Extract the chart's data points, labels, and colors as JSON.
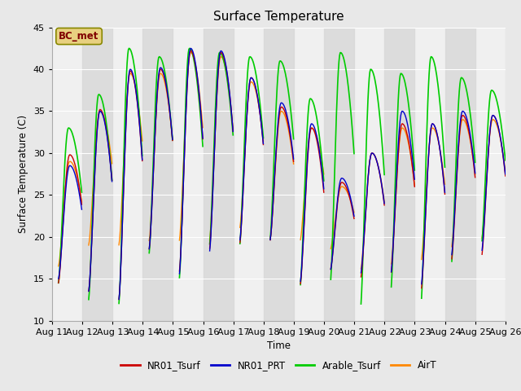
{
  "title": "Surface Temperature",
  "ylabel": "Surface Temperature (C)",
  "xlabel": "Time",
  "ylim": [
    10,
    45
  ],
  "xtick_labels": [
    "Aug 11",
    "Aug 12",
    "Aug 13",
    "Aug 14",
    "Aug 15",
    "Aug 16",
    "Aug 17",
    "Aug 18",
    "Aug 19",
    "Aug 20",
    "Aug 21",
    "Aug 22",
    "Aug 23",
    "Aug 24",
    "Aug 25",
    "Aug 26"
  ],
  "annotation": "BC_met",
  "annotation_color": "#800000",
  "annotation_bg": "#e8d080",
  "background_color": "#e8e8e8",
  "axes_bg": "#f0f0f0",
  "grid_color": "#ffffff",
  "series": {
    "NR01_Tsurf": {
      "color": "#cc0000",
      "linewidth": 1.0
    },
    "NR01_PRT": {
      "color": "#0000cc",
      "linewidth": 1.0
    },
    "Arable_Tsurf": {
      "color": "#00cc00",
      "linewidth": 1.2
    },
    "AirT": {
      "color": "#ff8800",
      "linewidth": 1.0
    }
  },
  "peaks": {
    "NR01_Tsurf": [
      29.8,
      35.2,
      39.8,
      40.0,
      42.2,
      42.0,
      39.0,
      35.5,
      33.0,
      26.5,
      30.0,
      33.5,
      33.5,
      34.5,
      34.5
    ],
    "NR01_PRT": [
      28.5,
      35.0,
      40.0,
      40.2,
      42.5,
      42.2,
      39.0,
      36.0,
      33.5,
      27.0,
      30.0,
      35.0,
      33.5,
      35.0,
      34.5
    ],
    "Arable_Tsurf": [
      33.0,
      37.0,
      42.5,
      41.5,
      42.5,
      42.0,
      41.5,
      41.0,
      36.5,
      42.0,
      40.0,
      39.5,
      41.5,
      39.0,
      37.5
    ],
    "AirT": [
      29.0,
      35.0,
      39.5,
      39.5,
      42.0,
      41.5,
      38.5,
      35.0,
      33.0,
      26.0,
      30.0,
      33.0,
      33.0,
      34.0,
      34.0
    ]
  },
  "mins": {
    "NR01_Tsurf": [
      14.5,
      13.5,
      12.5,
      18.5,
      15.8,
      18.5,
      19.2,
      19.5,
      14.2,
      16.0,
      15.0,
      15.5,
      13.5,
      17.0,
      17.5
    ],
    "NR01_PRT": [
      15.0,
      13.5,
      12.5,
      18.5,
      15.5,
      18.2,
      19.5,
      19.5,
      14.5,
      16.0,
      15.5,
      15.5,
      14.0,
      17.5,
      18.0
    ],
    "Arable_Tsurf": [
      14.5,
      12.5,
      12.0,
      18.0,
      15.0,
      19.0,
      19.0,
      19.5,
      14.0,
      14.5,
      11.5,
      13.5,
      12.0,
      16.5,
      19.0
    ],
    "AirT": [
      16.5,
      19.0,
      19.0,
      19.5,
      19.5,
      19.5,
      21.0,
      19.5,
      19.5,
      18.5,
      16.0,
      16.5,
      17.0,
      18.5,
      19.5
    ]
  }
}
